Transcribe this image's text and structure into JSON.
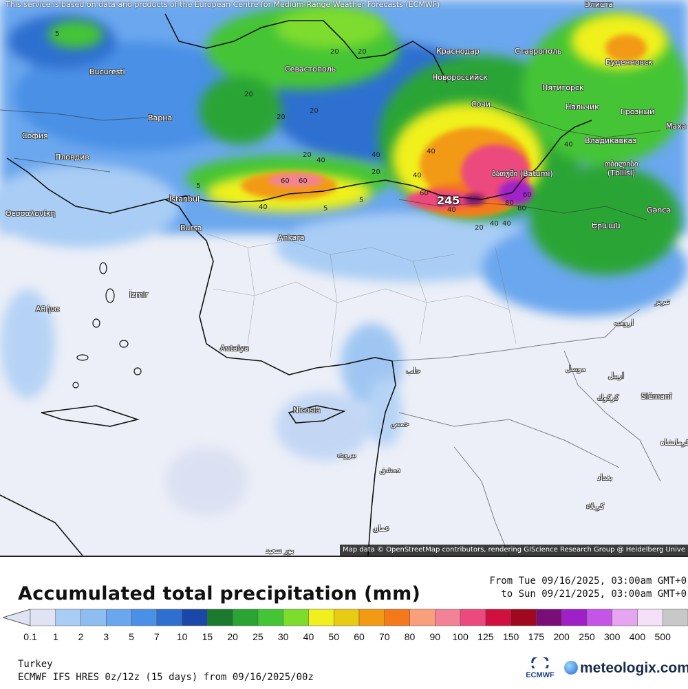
{
  "map": {
    "attribution_top": "This service is based on data and products of the European Centre for Medium-Range Weather Forecasts (ECMWF)",
    "attribution_bottom": "Map data © OpenStreetMap contributors, rendering GIScience Research Group @ Heidelberg Unive",
    "max_value_label": "245",
    "places": [
      {
        "id": "bucuresti",
        "label": "București"
      },
      {
        "id": "varna",
        "label": "Варна"
      },
      {
        "id": "sofia",
        "label": "София"
      },
      {
        "id": "plovdiv",
        "label": "Пловдив"
      },
      {
        "id": "thessaloniki",
        "label": "Θεσσαλονίκη"
      },
      {
        "id": "istanbul",
        "label": "İstanbul"
      },
      {
        "id": "bursa",
        "label": "Bursa"
      },
      {
        "id": "ankara",
        "label": "Ankara"
      },
      {
        "id": "izmir",
        "label": "İzmir"
      },
      {
        "id": "athina",
        "label": "Αθήνα"
      },
      {
        "id": "antalya",
        "label": "Antalya"
      },
      {
        "id": "nicosia",
        "label": "Nicosia"
      },
      {
        "id": "sevastopol",
        "label": "Севастополь"
      },
      {
        "id": "krasnodar",
        "label": "Краснодар"
      },
      {
        "id": "stavropol",
        "label": "Ставрополь"
      },
      {
        "id": "budennovsk",
        "label": "Буденновск"
      },
      {
        "id": "novorossiysk",
        "label": "Новороссийск"
      },
      {
        "id": "pyatigorsk",
        "label": "Пятигорск"
      },
      {
        "id": "sochi",
        "label": "Сочи"
      },
      {
        "id": "nalchik",
        "label": "Нальчик"
      },
      {
        "id": "grozny",
        "label": "Грозный"
      },
      {
        "id": "makhachkala",
        "label": "Маха"
      },
      {
        "id": "vladikavkaz",
        "label": "Владикавказ"
      },
      {
        "id": "tbilisi",
        "label": "თბილისი (Tbilisi)"
      },
      {
        "id": "batumi",
        "label": "ბათუმი (Batumi)"
      },
      {
        "id": "ganca",
        "label": "Gəncə"
      },
      {
        "id": "yerevan",
        "label": "Երևան"
      },
      {
        "id": "elista",
        "label": "Элиста"
      },
      {
        "id": "halab",
        "label": "حلب"
      },
      {
        "id": "homs",
        "label": "حمص"
      },
      {
        "id": "beirut",
        "label": "بيروت"
      },
      {
        "id": "dimashq",
        "label": "دمشق"
      },
      {
        "id": "amman",
        "label": "عمان"
      },
      {
        "id": "mosul",
        "label": "موصل"
      },
      {
        "id": "erbil",
        "label": "اربيل"
      },
      {
        "id": "kirkuk",
        "label": "كركوك"
      },
      {
        "id": "slemani",
        "label": "Slêmanî"
      },
      {
        "id": "baghdad",
        "label": "بغداد"
      },
      {
        "id": "karbala",
        "label": "كربلاء"
      },
      {
        "id": "tabriz",
        "label": "تبريز"
      },
      {
        "id": "urmia",
        "label": "ارومیه"
      },
      {
        "id": "kermanshah",
        "label": "کرمانشاه"
      },
      {
        "id": "portsaid",
        "label": "بور سعيد"
      }
    ],
    "contour_labels": [
      "20",
      "20",
      "20",
      "20",
      "5",
      "40",
      "60",
      "40",
      "60",
      "40",
      "20",
      "40",
      "40",
      "60",
      "80",
      "20",
      "40",
      "40",
      "80",
      "60",
      "40",
      "40",
      "5",
      "5",
      "5",
      "20",
      "20"
    ]
  },
  "footer": {
    "title": "Accumulated total precipitation (mm)",
    "period_from": "From Tue 09/16/2025, 03:00am GMT+0",
    "period_to": "to Sun 09/21/2025, 03:00am GMT+0",
    "region": "Turkey",
    "model": "ECMWF IFS HRES 0z/12z (15 days) from 09/16/2025/00z",
    "ecmwf_label": "ECMWF",
    "brand": "meteologix.com"
  },
  "legend": {
    "ticks": [
      "0.1",
      "1",
      "2",
      "3",
      "5",
      "7",
      "10",
      "15",
      "20",
      "25",
      "30",
      "40",
      "50",
      "60",
      "70",
      "80",
      "90",
      "100",
      "125",
      "150",
      "175",
      "200",
      "250",
      "300",
      "400",
      "500"
    ],
    "colors": [
      "#dfe3f3",
      "#a9cdf5",
      "#8dbdf1",
      "#6aa7ee",
      "#4a90e6",
      "#2e6fd0",
      "#1a47a8",
      "#1b7a2e",
      "#2aa534",
      "#44c535",
      "#7edc2d",
      "#f0f01e",
      "#e8cc14",
      "#f29a14",
      "#f5781a",
      "#f9a07a",
      "#f28296",
      "#ec4a7e",
      "#d0103e",
      "#a00820",
      "#7a0e78",
      "#a020c8",
      "#c455e6",
      "#e5a5f0",
      "#f4e0f8",
      "#c8c8c8"
    ]
  }
}
